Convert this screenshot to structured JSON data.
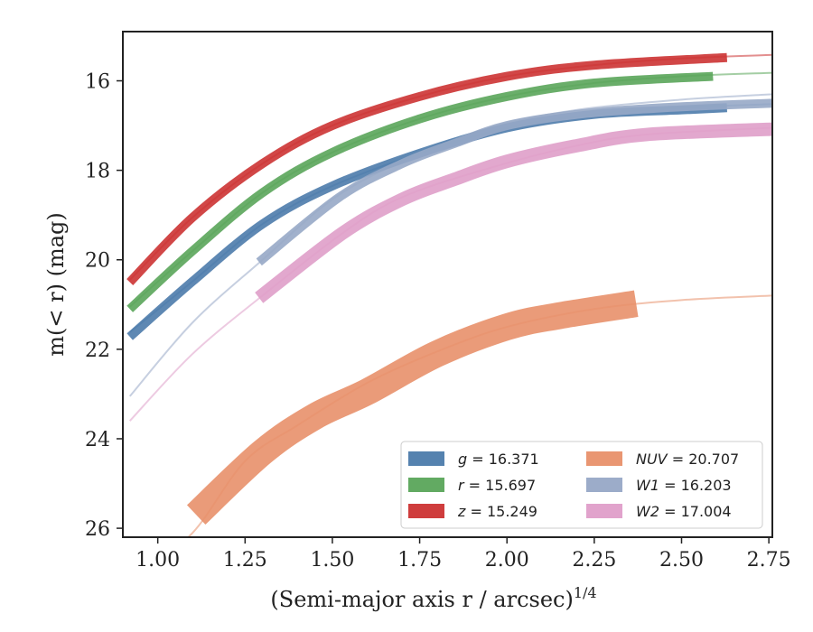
{
  "chart_data": {
    "type": "line",
    "xlabel": "(Semi-major axis r / arcsec)",
    "xlabel_exponent": "1/4",
    "ylabel": "m(< r) (mag)",
    "xlim": [
      0.9,
      2.76
    ],
    "ylim": [
      26.2,
      14.9
    ],
    "y_inverted": true,
    "xticks": [
      "1.00",
      "1.25",
      "1.50",
      "1.75",
      "2.00",
      "2.25",
      "2.50",
      "2.75"
    ],
    "yticks": [
      "16",
      "18",
      "20",
      "22",
      "24",
      "26"
    ],
    "legend_position": "lower-right",
    "legend_columns": 2,
    "series": [
      {
        "name": "g = 16.371",
        "var": "g",
        "value": "16.371",
        "color": "#4c7bab",
        "band_width": 0.1,
        "model": [
          [
            0.92,
            21.62
          ],
          [
            1.1,
            20.48
          ],
          [
            1.3,
            19.2
          ],
          [
            1.5,
            18.35
          ],
          [
            1.75,
            17.62
          ],
          [
            2.0,
            17.05
          ],
          [
            2.25,
            16.75
          ],
          [
            2.5,
            16.6
          ],
          [
            2.76,
            16.52
          ]
        ],
        "measured": [
          [
            0.92,
            21.72
          ],
          [
            1.1,
            20.48
          ],
          [
            1.3,
            19.2
          ],
          [
            1.5,
            18.35
          ],
          [
            1.75,
            17.62
          ],
          [
            2.0,
            17.05
          ],
          [
            2.25,
            16.75
          ],
          [
            2.5,
            16.65
          ],
          [
            2.63,
            16.6
          ]
        ]
      },
      {
        "name": "r = 15.697",
        "var": "r",
        "value": "15.697",
        "color": "#5aa55a",
        "band_width": 0.1,
        "model": [
          [
            0.92,
            21.05
          ],
          [
            1.1,
            19.8
          ],
          [
            1.3,
            18.5
          ],
          [
            1.5,
            17.6
          ],
          [
            1.75,
            16.85
          ],
          [
            2.0,
            16.35
          ],
          [
            2.25,
            16.05
          ],
          [
            2.5,
            15.9
          ],
          [
            2.76,
            15.82
          ]
        ],
        "measured": [
          [
            0.92,
            21.1
          ],
          [
            1.1,
            19.8
          ],
          [
            1.3,
            18.5
          ],
          [
            1.5,
            17.6
          ],
          [
            1.75,
            16.85
          ],
          [
            2.0,
            16.35
          ],
          [
            2.25,
            16.05
          ],
          [
            2.59,
            15.9
          ]
        ]
      },
      {
        "name": "z = 15.249",
        "var": "z",
        "value": "15.249",
        "color": "#cc3333",
        "band_width": 0.1,
        "model": [
          [
            0.92,
            20.45
          ],
          [
            1.1,
            19.05
          ],
          [
            1.3,
            17.85
          ],
          [
            1.5,
            17.0
          ],
          [
            1.75,
            16.35
          ],
          [
            2.0,
            15.9
          ],
          [
            2.25,
            15.65
          ],
          [
            2.5,
            15.5
          ],
          [
            2.76,
            15.42
          ]
        ],
        "measured": [
          [
            0.92,
            20.5
          ],
          [
            1.1,
            19.05
          ],
          [
            1.3,
            17.85
          ],
          [
            1.5,
            17.0
          ],
          [
            1.75,
            16.35
          ],
          [
            2.0,
            15.9
          ],
          [
            2.25,
            15.65
          ],
          [
            2.63,
            15.48
          ]
        ]
      },
      {
        "name": "NUV = 20.707",
        "var": "NUV",
        "value": "20.707",
        "color": "#e8906a",
        "band_width": 0.3,
        "model": [
          [
            0.95,
            27.0
          ],
          [
            1.1,
            26.1
          ],
          [
            1.25,
            24.5
          ],
          [
            1.4,
            23.7
          ],
          [
            1.6,
            22.75
          ],
          [
            1.8,
            22.05
          ],
          [
            2.0,
            21.5
          ],
          [
            2.25,
            21.1
          ],
          [
            2.5,
            20.9
          ],
          [
            2.76,
            20.8
          ]
        ],
        "measured": [
          [
            1.11,
            25.7
          ],
          [
            1.3,
            24.3
          ],
          [
            1.45,
            23.5
          ],
          [
            1.6,
            22.95
          ],
          [
            1.8,
            22.1
          ],
          [
            2.0,
            21.5
          ],
          [
            2.15,
            21.25
          ],
          [
            2.37,
            20.98
          ]
        ]
      },
      {
        "name": "W1 = 16.203",
        "var": "W1",
        "value": "16.203",
        "color": "#97a8c6",
        "band_width": 0.1,
        "model": [
          [
            0.92,
            23.05
          ],
          [
            1.1,
            21.4
          ],
          [
            1.3,
            20.0
          ],
          [
            1.5,
            18.65
          ],
          [
            1.7,
            17.8
          ],
          [
            1.95,
            17.05
          ],
          [
            2.2,
            16.65
          ],
          [
            2.5,
            16.42
          ],
          [
            2.76,
            16.3
          ]
        ],
        "measured": [
          [
            1.29,
            20.05
          ],
          [
            1.52,
            18.6
          ],
          [
            1.7,
            17.85
          ],
          [
            1.85,
            17.4
          ],
          [
            2.0,
            17.0
          ],
          [
            2.2,
            16.75
          ],
          [
            2.45,
            16.6
          ],
          [
            2.76,
            16.5
          ]
        ]
      },
      {
        "name": "W2 = 17.004",
        "var": "W2",
        "value": "17.004",
        "color": "#df9ec9",
        "band_width": 0.15,
        "model": [
          [
            0.92,
            23.6
          ],
          [
            1.1,
            22.1
          ],
          [
            1.3,
            20.8
          ],
          [
            1.53,
            19.4
          ],
          [
            1.7,
            18.6
          ],
          [
            1.95,
            17.95
          ],
          [
            2.2,
            17.45
          ],
          [
            2.4,
            17.2
          ],
          [
            2.76,
            17.05
          ]
        ],
        "measured": [
          [
            1.29,
            20.85
          ],
          [
            1.53,
            19.4
          ],
          [
            1.7,
            18.65
          ],
          [
            1.85,
            18.2
          ],
          [
            2.0,
            17.8
          ],
          [
            2.2,
            17.45
          ],
          [
            2.4,
            17.2
          ],
          [
            2.76,
            17.08
          ]
        ]
      }
    ]
  }
}
